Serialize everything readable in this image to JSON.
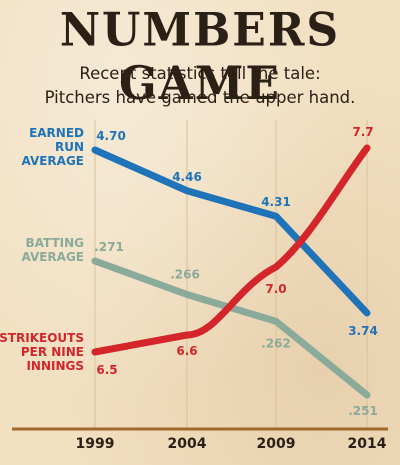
{
  "header": {
    "title": "NUMBERS GAME",
    "subtitle_line1": "Recent statistics tell the tale:",
    "subtitle_line2": "Pitchers have gained the upper hand."
  },
  "chart_data": {
    "type": "line",
    "x": [
      "1999",
      "2004",
      "2009",
      "2014"
    ],
    "series": [
      {
        "name": "EARNED RUN AVERAGE",
        "name_lines": [
          "EARNED",
          "RUN",
          "AVERAGE"
        ],
        "color": "#1f73b8",
        "values": [
          4.7,
          4.46,
          4.31,
          3.74
        ],
        "labels": [
          "4.70",
          "4.46",
          "4.31",
          "3.74"
        ]
      },
      {
        "name": "BATTING AVERAGE",
        "name_lines": [
          "BATTING",
          "AVERAGE"
        ],
        "color": "#8aab9a",
        "values": [
          0.271,
          0.266,
          0.262,
          0.251
        ],
        "labels": [
          ".271",
          ".266",
          ".262",
          ".251"
        ]
      },
      {
        "name": "STRIKEOUTS PER NINE INNINGS",
        "name_lines": [
          "STRIKEOUTS",
          "PER NINE",
          "INNINGS"
        ],
        "color": "#d4262a",
        "values": [
          6.5,
          6.6,
          7.0,
          7.7
        ],
        "labels": [
          "6.5",
          "6.6",
          "7.0",
          "7.7"
        ]
      }
    ],
    "grid": "vertical lines at each year",
    "legend": "series names printed at left of each line",
    "axis_color": "#a0682a"
  }
}
